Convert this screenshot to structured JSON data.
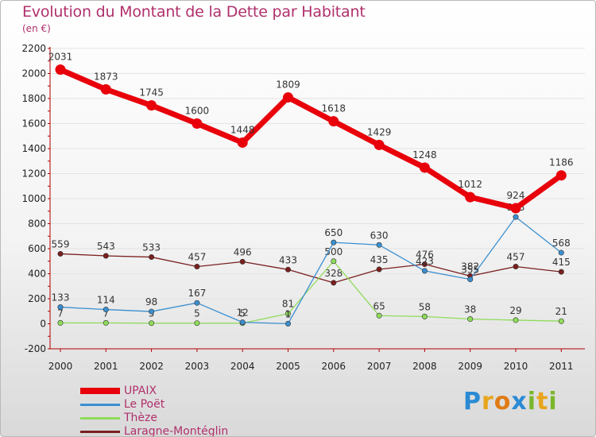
{
  "title": "Evolution du Montant de la Dette par Habitant",
  "unit": "(en €)",
  "brand": {
    "text": "Proxiti",
    "letters": [
      {
        "ch": "P",
        "color": "#2a8ad4"
      },
      {
        "ch": "r",
        "color": "#e8a51d"
      },
      {
        "ch": "o",
        "color": "#e07b15"
      },
      {
        "ch": "x",
        "color": "#2a8ad4"
      },
      {
        "ch": "i",
        "color": "#7ab62c"
      },
      {
        "ch": "t",
        "color": "#e8a51d"
      },
      {
        "ch": "i",
        "color": "#7ab62c"
      }
    ]
  },
  "chart_data": {
    "type": "line",
    "title": "Evolution du Montant de la Dette par Habitant",
    "ylabel": "(en €)",
    "xlabel": "",
    "ylim": [
      -200,
      2200
    ],
    "yticks": [
      -200,
      0,
      200,
      400,
      600,
      800,
      1000,
      1200,
      1400,
      1600,
      1800,
      2000,
      2200
    ],
    "categories": [
      "2000",
      "2001",
      "2002",
      "2003",
      "2004",
      "2005",
      "2006",
      "2007",
      "2008",
      "2009",
      "2010",
      "2011"
    ],
    "legend_position": "bottom-left",
    "series": [
      {
        "name": "UPAIX",
        "color": "#e8000b",
        "values": [
          2031,
          1873,
          1745,
          1600,
          1448,
          1809,
          1618,
          1429,
          1248,
          1012,
          924,
          1186
        ]
      },
      {
        "name": "Le Poët",
        "color": "#3b8fcf",
        "values": [
          133,
          114,
          98,
          167,
          12,
          1,
          650,
          630,
          423,
          355,
          853,
          568
        ]
      },
      {
        "name": "Thèze",
        "color": "#8fdc5a",
        "values": [
          7,
          7,
          5,
          5,
          5,
          81,
          500,
          65,
          58,
          38,
          29,
          21
        ]
      },
      {
        "name": "Laragne-Montéglin",
        "color": "#7a1f1f",
        "values": [
          559,
          543,
          533,
          457,
          496,
          433,
          328,
          435,
          476,
          382,
          457,
          415
        ]
      }
    ]
  }
}
